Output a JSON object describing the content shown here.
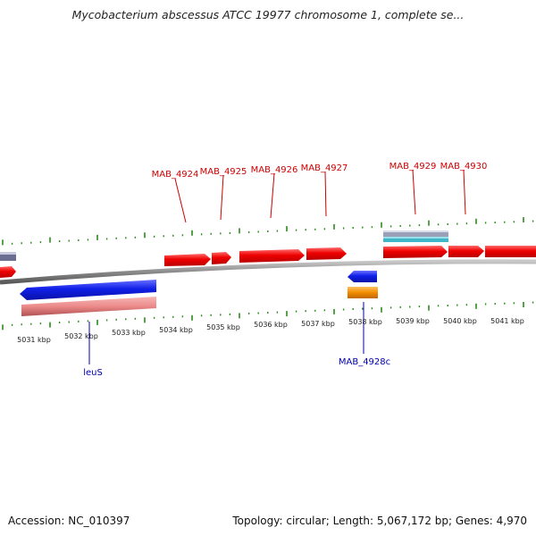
{
  "header": {
    "title": "Mycobacterium abscessus ATCC 19977 chromosome 1, complete se..."
  },
  "footer": {
    "accession": "Accession: NC_010397",
    "topology": "Topology: circular; Length: 5,067,172 bp; Genes: 4,970"
  },
  "colors": {
    "forward_gene": "#e8000c",
    "reverse_gene": "#0a16e0",
    "rna_gene": "#f28c00",
    "tick": "#2a8a1a",
    "backbone": "#8c8c8c",
    "forward_label": "#cc0000",
    "reverse_label": "#0000aa"
  },
  "scale_labels": [
    "5031 kbp",
    "5032 kbp",
    "5033 kbp",
    "5034 kbp",
    "5035 kbp",
    "5036 kbp",
    "5037 kbp",
    "5038 kbp",
    "5039 kbp",
    "5040 kbp",
    "5041 kbp"
  ],
  "forward_gene_labels": [
    "MAB_4924",
    "MAB_4925",
    "MAB_4926",
    "MAB_4927",
    "MAB_4929",
    "MAB_4930"
  ],
  "reverse_gene_labels": [
    "leuS",
    "MAB_4928c"
  ]
}
